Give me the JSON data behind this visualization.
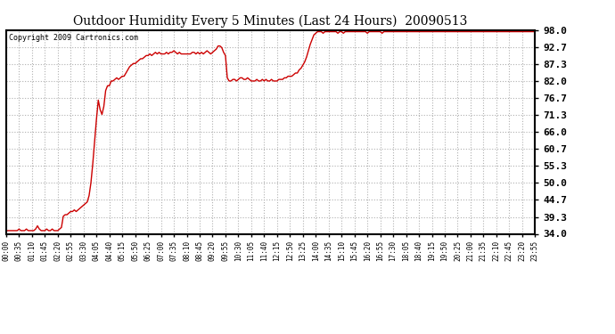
{
  "title": "Outdoor Humidity Every 5 Minutes (Last 24 Hours)  20090513",
  "copyright_text": "Copyright 2009 Cartronics.com",
  "background_color": "#ffffff",
  "plot_bg_color": "#ffffff",
  "grid_color": "#b0b0b0",
  "line_color": "#cc0000",
  "yticks": [
    34.0,
    39.3,
    44.7,
    50.0,
    55.3,
    60.7,
    66.0,
    71.3,
    76.7,
    82.0,
    87.3,
    92.7,
    98.0
  ],
  "ylim": [
    34.0,
    98.0
  ],
  "xtick_labels": [
    "00:00",
    "00:35",
    "01:10",
    "01:45",
    "02:20",
    "02:55",
    "03:30",
    "04:05",
    "04:40",
    "05:15",
    "05:50",
    "06:25",
    "07:00",
    "07:35",
    "08:10",
    "08:45",
    "09:20",
    "09:55",
    "10:30",
    "11:05",
    "11:40",
    "12:15",
    "12:50",
    "13:25",
    "14:00",
    "14:35",
    "15:10",
    "15:45",
    "16:20",
    "16:55",
    "17:30",
    "18:05",
    "18:40",
    "19:15",
    "19:50",
    "20:25",
    "21:00",
    "21:35",
    "22:10",
    "22:45",
    "23:20",
    "23:55"
  ],
  "humidity_values": [
    35.0,
    35.0,
    35.0,
    35.0,
    35.0,
    35.0,
    35.0,
    35.5,
    35.0,
    35.0,
    35.0,
    35.5,
    35.0,
    35.0,
    35.0,
    35.0,
    35.5,
    36.5,
    35.5,
    35.0,
    35.0,
    35.0,
    35.5,
    35.0,
    35.0,
    35.5,
    35.0,
    35.0,
    35.0,
    35.5,
    36.0,
    39.5,
    40.0,
    40.0,
    40.5,
    41.0,
    41.0,
    41.5,
    41.0,
    41.5,
    42.0,
    42.5,
    43.0,
    43.5,
    44.0,
    46.0,
    50.0,
    56.0,
    63.0,
    70.0,
    76.0,
    73.0,
    71.5,
    74.0,
    79.0,
    80.5,
    80.5,
    82.0,
    82.0,
    82.5,
    83.0,
    82.5,
    83.0,
    83.5,
    83.5,
    84.5,
    85.5,
    86.5,
    87.0,
    87.5,
    87.5,
    88.0,
    88.5,
    89.0,
    89.0,
    89.5,
    90.0,
    90.0,
    90.5,
    90.0,
    90.5,
    91.0,
    90.5,
    91.0,
    90.5,
    90.5,
    90.5,
    91.0,
    90.5,
    91.0,
    91.0,
    91.5,
    91.0,
    90.5,
    91.0,
    90.5,
    90.5,
    90.5,
    90.5,
    90.5,
    90.5,
    91.0,
    91.0,
    90.5,
    91.0,
    90.5,
    91.0,
    90.5,
    91.0,
    91.5,
    91.0,
    90.5,
    91.0,
    91.5,
    92.0,
    93.0,
    93.0,
    92.5,
    91.0,
    90.0,
    83.0,
    82.0,
    82.0,
    82.5,
    82.5,
    82.0,
    82.5,
    83.0,
    83.0,
    82.5,
    82.5,
    83.0,
    82.5,
    82.0,
    82.0,
    82.0,
    82.5,
    82.0,
    82.0,
    82.5,
    82.0,
    82.5,
    82.0,
    82.0,
    82.5,
    82.0,
    82.0,
    82.0,
    82.5,
    82.5,
    82.5,
    83.0,
    83.0,
    83.5,
    83.5,
    83.5,
    84.0,
    84.5,
    84.5,
    85.5,
    86.0,
    87.0,
    88.0,
    89.5,
    91.5,
    93.5,
    95.0,
    96.5,
    97.0,
    97.5,
    97.5,
    97.5,
    97.0,
    97.5,
    97.5,
    97.5,
    97.5,
    97.5,
    97.5,
    97.5,
    97.0,
    97.5,
    97.5,
    97.0,
    97.5,
    97.5,
    97.5,
    97.5,
    97.5,
    97.5,
    97.5,
    97.5,
    97.5,
    97.5,
    97.5,
    97.5,
    97.0,
    97.5,
    97.5,
    97.5,
    97.5,
    97.5,
    97.5,
    97.5,
    97.0,
    97.5,
    97.5,
    97.5,
    97.5,
    97.5,
    97.5,
    97.5,
    97.5,
    97.5,
    97.5,
    97.5,
    97.5,
    97.5,
    97.5,
    97.5,
    97.5,
    97.5,
    97.5,
    97.5,
    97.5,
    97.5,
    97.5,
    97.5,
    97.5,
    97.5,
    97.5,
    97.5,
    97.5,
    97.5,
    97.5,
    97.5,
    97.5,
    97.5,
    97.5,
    97.5,
    97.5,
    97.5,
    97.5,
    97.5,
    97.5,
    97.5,
    97.5,
    97.5,
    97.5,
    97.5,
    97.5,
    97.5,
    97.5,
    97.5,
    97.5,
    97.5,
    97.5,
    97.5,
    97.5,
    97.5,
    97.5,
    97.5,
    97.5,
    97.5,
    97.5,
    97.5,
    97.5,
    97.5,
    97.5,
    97.5,
    97.5,
    97.5,
    97.5,
    97.5,
    97.5,
    97.5,
    97.5,
    97.5,
    97.5,
    97.5,
    97.5,
    97.5,
    97.5,
    97.5,
    97.5,
    97.5,
    97.5,
    97.5,
    97.5,
    97.5,
    97.5,
    97.0,
    97.5,
    97.5,
    97.5,
    97.5,
    98.0
  ]
}
